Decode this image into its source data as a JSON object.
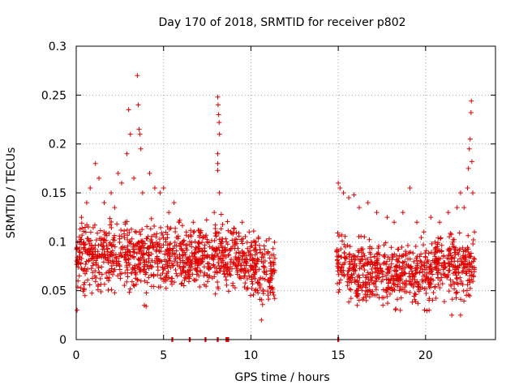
{
  "chart_data": {
    "type": "scatter",
    "title": "Day 170 of 2018, SRMTID for receiver p802",
    "xlabel": "GPS time / hours",
    "ylabel": "SRMTID / TECUs",
    "xlim": [
      0,
      24
    ],
    "ylim": [
      0,
      0.3
    ],
    "xticks": [
      0,
      5,
      10,
      15,
      20
    ],
    "xtick_labels": [
      "0",
      "5",
      "10",
      "15",
      "20"
    ],
    "yticks": [
      0,
      0.05,
      0.1,
      0.15,
      0.2,
      0.25,
      0.3
    ],
    "ytick_labels": [
      "0",
      "0.05",
      "0.1",
      "0.15",
      "0.2",
      "0.25",
      "0.3"
    ],
    "grid": true,
    "marker": "+",
    "color": "#e00000",
    "series": [
      {
        "name": "SRMTID",
        "segments": [
          {
            "x_start": 0.0,
            "x_end": 11.4,
            "baseline": 0.085,
            "spread": 0.03
          },
          {
            "x_start": 14.9,
            "x_end": 22.8,
            "baseline": 0.075,
            "spread": 0.028
          }
        ],
        "points": [
          [
            0.05,
            0.03
          ],
          [
            0.1,
            0.06
          ],
          [
            0.2,
            0.1
          ],
          [
            0.3,
            0.125
          ],
          [
            0.6,
            0.14
          ],
          [
            0.8,
            0.155
          ],
          [
            1.1,
            0.18
          ],
          [
            1.3,
            0.165
          ],
          [
            1.6,
            0.14
          ],
          [
            2.0,
            0.15
          ],
          [
            2.2,
            0.135
          ],
          [
            2.4,
            0.17
          ],
          [
            2.6,
            0.16
          ],
          [
            2.8,
            0.12
          ],
          [
            2.9,
            0.19
          ],
          [
            3.0,
            0.235
          ],
          [
            3.1,
            0.21
          ],
          [
            3.3,
            0.165
          ],
          [
            3.5,
            0.27
          ],
          [
            3.55,
            0.24
          ],
          [
            3.6,
            0.215
          ],
          [
            3.65,
            0.21
          ],
          [
            3.7,
            0.195
          ],
          [
            3.8,
            0.15
          ],
          [
            3.9,
            0.035
          ],
          [
            4.0,
            0.034
          ],
          [
            4.2,
            0.17
          ],
          [
            4.5,
            0.155
          ],
          [
            4.8,
            0.15
          ],
          [
            5.0,
            0.155
          ],
          [
            5.3,
            0.13
          ],
          [
            5.6,
            0.14
          ],
          [
            5.9,
            0.12
          ],
          [
            6.3,
            0.11
          ],
          [
            6.7,
            0.12
          ],
          [
            7.1,
            0.11
          ],
          [
            7.5,
            0.1
          ],
          [
            7.9,
            0.13
          ],
          [
            8.1,
            0.248
          ],
          [
            8.12,
            0.24
          ],
          [
            8.15,
            0.23
          ],
          [
            8.18,
            0.222
          ],
          [
            8.2,
            0.21
          ],
          [
            8.1,
            0.19
          ],
          [
            8.1,
            0.18
          ],
          [
            8.1,
            0.173
          ],
          [
            8.2,
            0.15
          ],
          [
            8.3,
            0.128
          ],
          [
            8.6,
            0.1
          ],
          [
            9.0,
            0.11
          ],
          [
            9.5,
            0.12
          ],
          [
            9.9,
            0.11
          ],
          [
            10.3,
            0.1
          ],
          [
            10.6,
            0.08
          ],
          [
            10.9,
            0.07
          ],
          [
            11.2,
            0.065
          ],
          [
            15.0,
            0.16
          ],
          [
            15.1,
            0.155
          ],
          [
            15.3,
            0.15
          ],
          [
            15.6,
            0.145
          ],
          [
            15.9,
            0.148
          ],
          [
            16.2,
            0.135
          ],
          [
            16.7,
            0.14
          ],
          [
            17.2,
            0.13
          ],
          [
            17.8,
            0.125
          ],
          [
            18.2,
            0.12
          ],
          [
            18.7,
            0.13
          ],
          [
            19.1,
            0.155
          ],
          [
            19.5,
            0.12
          ],
          [
            19.9,
            0.11
          ],
          [
            20.3,
            0.125
          ],
          [
            20.8,
            0.12
          ],
          [
            21.3,
            0.13
          ],
          [
            21.8,
            0.135
          ],
          [
            22.0,
            0.15
          ],
          [
            22.2,
            0.135
          ],
          [
            22.4,
            0.155
          ],
          [
            22.45,
            0.175
          ],
          [
            22.5,
            0.195
          ],
          [
            22.55,
            0.205
          ],
          [
            22.6,
            0.232
          ],
          [
            22.62,
            0.244
          ],
          [
            22.65,
            0.182
          ],
          [
            22.7,
            0.15
          ],
          [
            22.8,
            0.11
          ],
          [
            21.5,
            0.025
          ],
          [
            22.0,
            0.025
          ],
          [
            20.2,
            0.03
          ],
          [
            10.6,
            0.02
          ],
          [
            0.5,
            0.045
          ]
        ],
        "zero_points": [
          5.5,
          6.5,
          7.4,
          8.1,
          8.6,
          8.7,
          15.0
        ]
      }
    ]
  }
}
